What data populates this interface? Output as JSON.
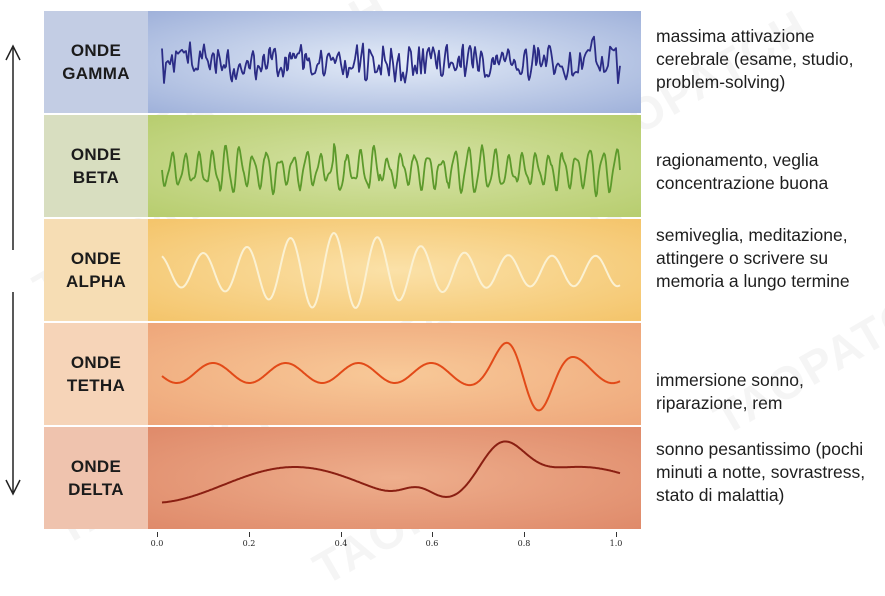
{
  "bands": [
    {
      "label_line1": "ONDE",
      "label_line2": "GAMMA",
      "description": "massima attivazione cerebrale (esame, studio, problem-solving)",
      "label_bg": "#c3cde4",
      "plot_bg_center": "#e4ecf8",
      "plot_bg_edge": "#9fb1da",
      "wave_color": "#2b2c86"
    },
    {
      "label_line1": "ONDE",
      "label_line2": "BETA",
      "description": "ragionamento, veglia concentrazione buona",
      "label_bg": "#d8dec0",
      "plot_bg_center": "#d6e3a6",
      "plot_bg_edge": "#b7cd6e",
      "wave_color": "#5d9a2c"
    },
    {
      "label_line1": "ONDE",
      "label_line2": "ALPHA",
      "description": "semiveglia, meditazione, attingere o scrivere su memoria a lungo termine",
      "label_bg": "#f6ddb4",
      "plot_bg_center": "#fbe1a8",
      "plot_bg_edge": "#f4c46a",
      "wave_color": "#fbf1d2"
    },
    {
      "label_line1": "ONDE",
      "label_line2": "TETHA",
      "description": "immersione sonno, riparazione, rem",
      "label_bg": "#f6d4b8",
      "plot_bg_center": "#f8c998",
      "plot_bg_edge": "#eea67a",
      "wave_color": "#e24a18"
    },
    {
      "label_line1": "ONDE",
      "label_line2": "DELTA",
      "description": "sonno pesantissimo (pochi minuti a notte, sovrastress, stato di malattia)",
      "label_bg": "#efc3ae",
      "plot_bg_center": "#eeae8c",
      "plot_bg_edge": "#df8a6a",
      "wave_color": "#8a1f12"
    }
  ],
  "x_ticks": [
    "0.0",
    "0.2",
    "0.4",
    "0.6",
    "0.8",
    "1.0"
  ],
  "watermark": "TAOPATCH",
  "icons": {
    "up": "arrow-up-icon",
    "down": "arrow-down-icon"
  }
}
